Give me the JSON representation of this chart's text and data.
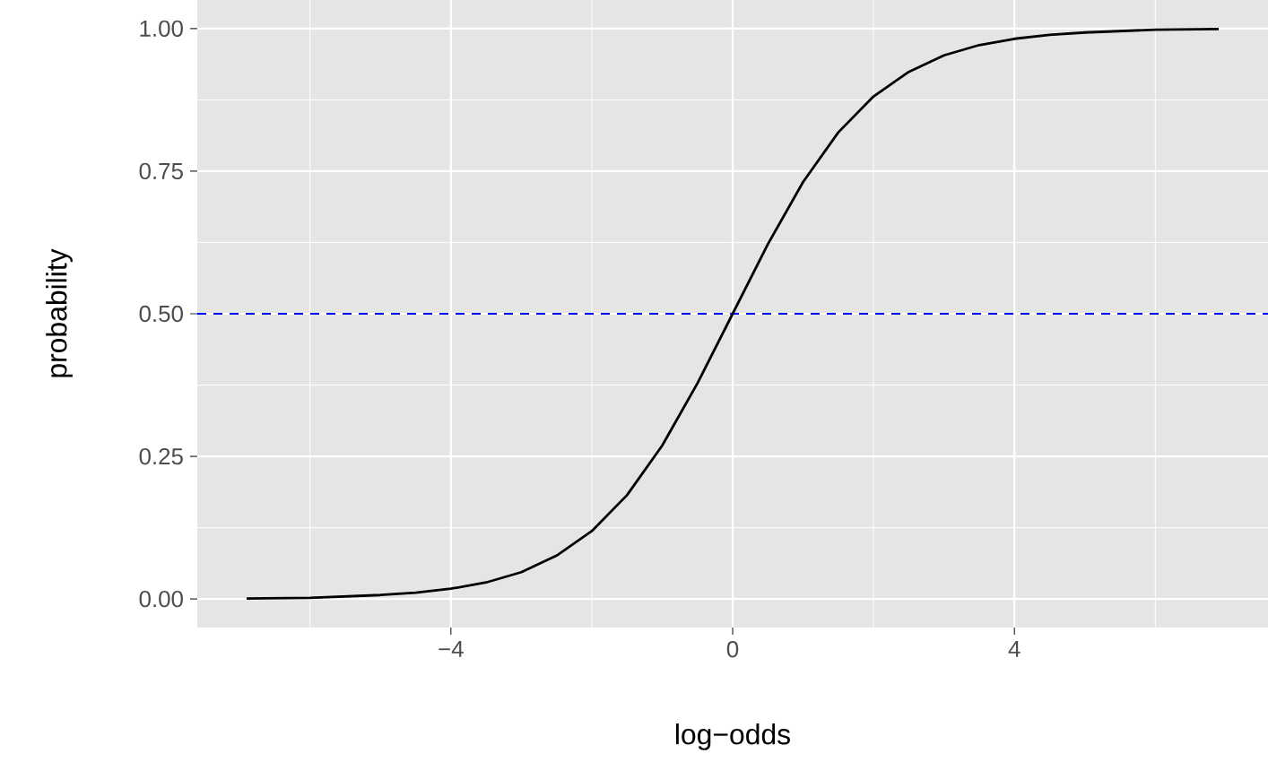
{
  "chart_data": {
    "type": "line",
    "xlabel": "log−odds",
    "ylabel": "probability",
    "x": [
      -6.9,
      -6,
      -5,
      -4.5,
      -4,
      -3.5,
      -3,
      -2.5,
      -2,
      -1.5,
      -1,
      -0.5,
      0,
      0.5,
      1,
      1.5,
      2,
      2.5,
      3,
      3.5,
      4,
      4.5,
      5,
      6,
      6.9
    ],
    "series": [
      {
        "color": "#000000",
        "values": [
          0.001,
          0.002,
          0.007,
          0.011,
          0.018,
          0.029,
          0.047,
          0.076,
          0.119,
          0.182,
          0.269,
          0.378,
          0.5,
          0.622,
          0.731,
          0.818,
          0.881,
          0.924,
          0.953,
          0.971,
          0.982,
          0.989,
          0.993,
          0.998,
          0.999
        ]
      }
    ],
    "xlim": [
      -7.6,
      7.6
    ],
    "ylim": [
      -0.05,
      1.05
    ],
    "xticks": [
      {
        "value": -4,
        "label": "−4"
      },
      0,
      4
    ],
    "yticks": [
      {
        "value": 0,
        "label": "0.00"
      },
      {
        "value": 0.25,
        "label": "0.25"
      },
      {
        "value": 0.5,
        "label": "0.50"
      },
      {
        "value": 0.75,
        "label": "0.75"
      },
      {
        "value": 1,
        "label": "1.00"
      }
    ],
    "grid": true,
    "line_style": "solid",
    "marker": "none",
    "ref_lines": [
      {
        "axis": "y",
        "value": 0.5,
        "color": "#0000ff",
        "line_style": "dashed"
      }
    ]
  }
}
